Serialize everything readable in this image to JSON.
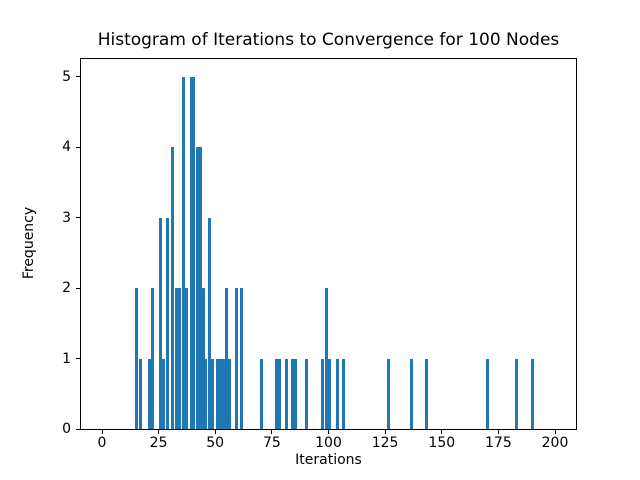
{
  "chart_data": {
    "type": "bar",
    "subtype": "histogram",
    "title": "Histogram of Iterations to Convergence for 100 Nodes",
    "xlabel": "Iterations",
    "ylabel": "Frequency",
    "x_ticks": [
      0,
      25,
      50,
      75,
      100,
      125,
      150,
      175,
      200
    ],
    "y_ticks": [
      0,
      1,
      2,
      3,
      4,
      5
    ],
    "xlim": [
      -9.25,
      209.25
    ],
    "ylim": [
      0,
      5.25
    ],
    "grid": false,
    "legend": null,
    "bar_color": "#1f77b4",
    "bin_width": 1.3,
    "bars": [
      {
        "x": 15.3,
        "freq": 2
      },
      {
        "x": 17.2,
        "freq": 1
      },
      {
        "x": 20.8,
        "freq": 1
      },
      {
        "x": 22.1,
        "freq": 2
      },
      {
        "x": 25.6,
        "freq": 3
      },
      {
        "x": 27.1,
        "freq": 1
      },
      {
        "x": 29.0,
        "freq": 3
      },
      {
        "x": 31.1,
        "freq": 4
      },
      {
        "x": 32.9,
        "freq": 2
      },
      {
        "x": 34.2,
        "freq": 2
      },
      {
        "x": 35.9,
        "freq": 5
      },
      {
        "x": 37.5,
        "freq": 2
      },
      {
        "x": 39.3,
        "freq": 5
      },
      {
        "x": 40.6,
        "freq": 5
      },
      {
        "x": 42.0,
        "freq": 4
      },
      {
        "x": 43.3,
        "freq": 4
      },
      {
        "x": 44.6,
        "freq": 2
      },
      {
        "x": 45.9,
        "freq": 1
      },
      {
        "x": 47.3,
        "freq": 3
      },
      {
        "x": 48.6,
        "freq": 1
      },
      {
        "x": 51.0,
        "freq": 1
      },
      {
        "x": 52.3,
        "freq": 1
      },
      {
        "x": 53.6,
        "freq": 1
      },
      {
        "x": 55.0,
        "freq": 2
      },
      {
        "x": 56.3,
        "freq": 1
      },
      {
        "x": 59.4,
        "freq": 2
      },
      {
        "x": 61.5,
        "freq": 2
      },
      {
        "x": 70.3,
        "freq": 1
      },
      {
        "x": 76.9,
        "freq": 1
      },
      {
        "x": 78.2,
        "freq": 1
      },
      {
        "x": 81.6,
        "freq": 1
      },
      {
        "x": 83.9,
        "freq": 1
      },
      {
        "x": 85.3,
        "freq": 1
      },
      {
        "x": 90.2,
        "freq": 1
      },
      {
        "x": 97.5,
        "freq": 1
      },
      {
        "x": 98.9,
        "freq": 2
      },
      {
        "x": 100.3,
        "freq": 1
      },
      {
        "x": 104.0,
        "freq": 1
      },
      {
        "x": 106.6,
        "freq": 1
      },
      {
        "x": 126.5,
        "freq": 1
      },
      {
        "x": 136.8,
        "freq": 1
      },
      {
        "x": 143.3,
        "freq": 1
      },
      {
        "x": 170.0,
        "freq": 1
      },
      {
        "x": 183.0,
        "freq": 1
      },
      {
        "x": 190.1,
        "freq": 1
      }
    ]
  }
}
